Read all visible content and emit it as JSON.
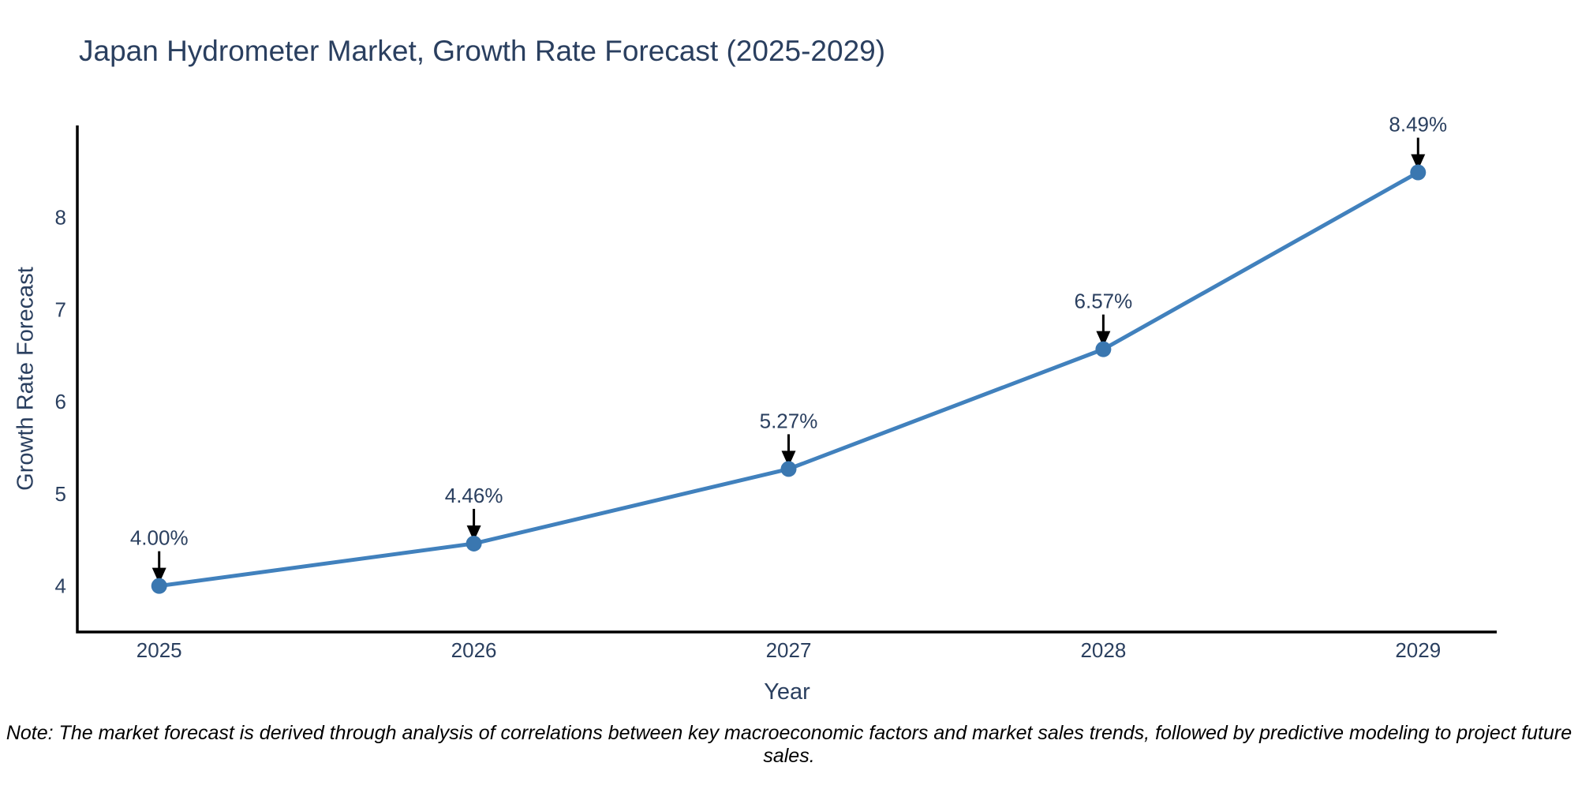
{
  "title": "Japan Hydrometer Market, Growth Rate Forecast (2025-2029)",
  "note": "Note: The market forecast is derived through analysis of correlations between key macroeconomic factors and market sales trends, followed by predictive modeling to project future sales.",
  "chart_data": {
    "type": "line",
    "title": "Japan Hydrometer Market, Growth Rate Forecast (2025-2029)",
    "xlabel": "Year",
    "ylabel": "Growth Rate Forecast",
    "x": [
      2025,
      2026,
      2027,
      2028,
      2029
    ],
    "values": [
      4.0,
      4.46,
      5.27,
      6.57,
      8.49
    ],
    "point_labels": [
      "4.00%",
      "4.46%",
      "5.27%",
      "6.57%",
      "8.49%"
    ],
    "xtick_labels": [
      "2025",
      "2026",
      "2027",
      "2028",
      "2029"
    ],
    "yticks": [
      4,
      5,
      6,
      7,
      8
    ],
    "xlim": [
      2024.74,
      2029.25
    ],
    "ylim": [
      3.5,
      9.0
    ],
    "grid": false,
    "legend": false,
    "line_shape": "linear",
    "line_color": "#4181bd",
    "marker_color": "#3a77b0",
    "axis_color": "#000000",
    "text_color": "#2a3f5f",
    "annotation_color": "#2a3f5f",
    "annotation_arrow_color": "#000000"
  }
}
